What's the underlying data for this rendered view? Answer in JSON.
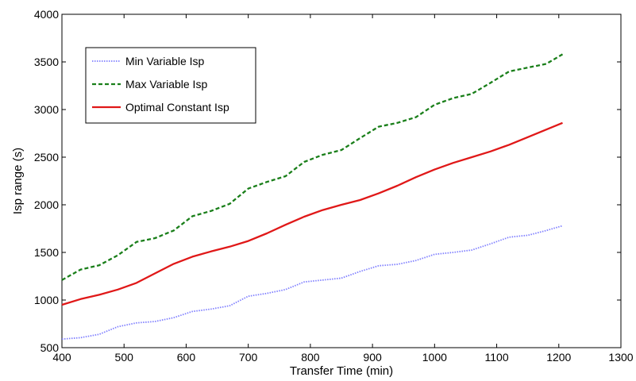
{
  "chart_data": {
    "type": "line",
    "title": "",
    "xlabel": "Transfer Time (min)",
    "ylabel": "Isp range (s)",
    "xlim": [
      400,
      1300
    ],
    "ylim": [
      500,
      4000
    ],
    "xticks": [
      400,
      500,
      600,
      700,
      800,
      900,
      1000,
      1100,
      1200,
      1300
    ],
    "yticks": [
      500,
      1000,
      1500,
      2000,
      2500,
      3000,
      3500,
      4000
    ],
    "grid": false,
    "legend_position": "top-left",
    "series": [
      {
        "name": "Min Variable Isp",
        "color": "#8080ff",
        "style": "dotted",
        "x": [
          400,
          430,
          460,
          490,
          520,
          550,
          580,
          610,
          640,
          670,
          700,
          730,
          760,
          790,
          820,
          850,
          880,
          910,
          940,
          970,
          1000,
          1030,
          1060,
          1090,
          1120,
          1150,
          1180,
          1206
        ],
        "y": [
          590,
          605,
          640,
          720,
          760,
          775,
          815,
          880,
          905,
          940,
          1040,
          1070,
          1110,
          1190,
          1210,
          1230,
          1300,
          1360,
          1375,
          1415,
          1480,
          1500,
          1525,
          1590,
          1660,
          1680,
          1730,
          1780
        ]
      },
      {
        "name": "Max Variable Isp",
        "color": "#1a7f1a",
        "style": "dashed",
        "x": [
          400,
          430,
          460,
          490,
          520,
          550,
          580,
          610,
          640,
          670,
          700,
          730,
          760,
          790,
          820,
          850,
          880,
          910,
          940,
          970,
          1000,
          1030,
          1060,
          1090,
          1120,
          1150,
          1180,
          1206
        ],
        "y": [
          1210,
          1320,
          1365,
          1470,
          1610,
          1650,
          1730,
          1880,
          1935,
          2010,
          2170,
          2240,
          2300,
          2450,
          2525,
          2575,
          2700,
          2820,
          2860,
          2920,
          3050,
          3120,
          3165,
          3280,
          3400,
          3440,
          3480,
          3580
        ]
      },
      {
        "name": "Optimal Constant Isp",
        "color": "#e01818",
        "style": "solid",
        "x": [
          400,
          430,
          460,
          490,
          520,
          550,
          580,
          610,
          640,
          670,
          700,
          730,
          760,
          790,
          820,
          850,
          880,
          910,
          940,
          970,
          1000,
          1030,
          1060,
          1090,
          1120,
          1150,
          1180,
          1206
        ],
        "y": [
          950,
          1010,
          1055,
          1110,
          1180,
          1280,
          1380,
          1455,
          1510,
          1560,
          1620,
          1700,
          1790,
          1875,
          1945,
          2000,
          2050,
          2120,
          2200,
          2290,
          2370,
          2440,
          2500,
          2560,
          2630,
          2710,
          2790,
          2860
        ]
      }
    ]
  }
}
